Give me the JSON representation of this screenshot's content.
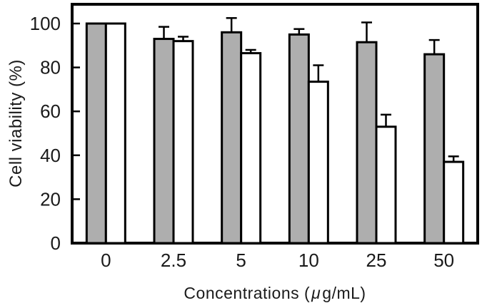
{
  "chart_data": {
    "type": "bar",
    "title": "",
    "ylabel": "Cell viability (%)",
    "xlabel": "Concentrations ( μ g/mL)",
    "xlabel_parts": {
      "prefix": "Concentrations (",
      "mu": "μ",
      "suffix": "g/mL)"
    },
    "categories": [
      "0",
      "2.5",
      "5",
      "10",
      "25",
      "50"
    ],
    "series": [
      {
        "name": "gray-bars",
        "fill": "#aeaeae",
        "values": [
          100,
          93,
          96,
          95,
          91.5,
          86
        ],
        "errors_up": [
          0,
          5.5,
          6.5,
          2.5,
          9,
          6.5
        ]
      },
      {
        "name": "white-bars",
        "fill": "#ffffff",
        "values": [
          100,
          92,
          86.5,
          73.5,
          53,
          37
        ],
        "errors_up": [
          0,
          2,
          1.5,
          7.5,
          5.5,
          2.5
        ]
      }
    ],
    "ylim": [
      0,
      100
    ],
    "yticks": [
      0,
      20,
      40,
      60,
      80,
      100
    ],
    "grid": false,
    "legend": "none",
    "bar_outline_color": "#000000",
    "axis_color": "#000000",
    "error_bar_color": "#000000",
    "background_color": "#ffffff"
  }
}
